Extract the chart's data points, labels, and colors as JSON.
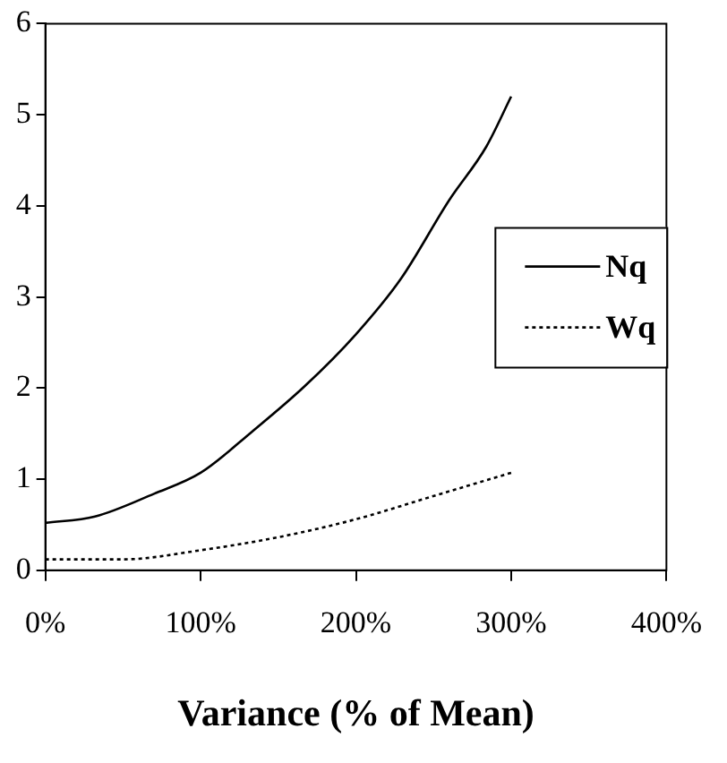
{
  "chart_data": {
    "type": "line",
    "xlabel": "Variance (% of Mean)",
    "xlim": [
      0,
      400
    ],
    "xticks": [
      {
        "value": 0,
        "label": "0%"
      },
      {
        "value": 100,
        "label": "100%"
      },
      {
        "value": 200,
        "label": "200%"
      },
      {
        "value": 300,
        "label": "300%"
      },
      {
        "value": 400,
        "label": "400%"
      }
    ],
    "ylim": [
      0,
      6
    ],
    "yticks": [
      0,
      1,
      2,
      3,
      4,
      5,
      6
    ],
    "grid": false,
    "legend": "center right",
    "marker": "none",
    "series": [
      {
        "name": "Nq",
        "color": "#000000",
        "line_style": "solid",
        "x": [
          0,
          32,
          70,
          100,
          133,
          167,
          200,
          229,
          260,
          284,
          300
        ],
        "values": [
          0.52,
          0.59,
          0.84,
          1.07,
          1.52,
          2.02,
          2.59,
          3.2,
          4.06,
          4.65,
          5.2
        ]
      },
      {
        "name": "Wq",
        "color": "#000000",
        "line_style": "dotted",
        "x": [
          0,
          50,
          100,
          152,
          200,
          249,
          300
        ],
        "values": [
          0.12,
          0.12,
          0.22,
          0.37,
          0.56,
          0.81,
          1.07
        ]
      }
    ]
  }
}
